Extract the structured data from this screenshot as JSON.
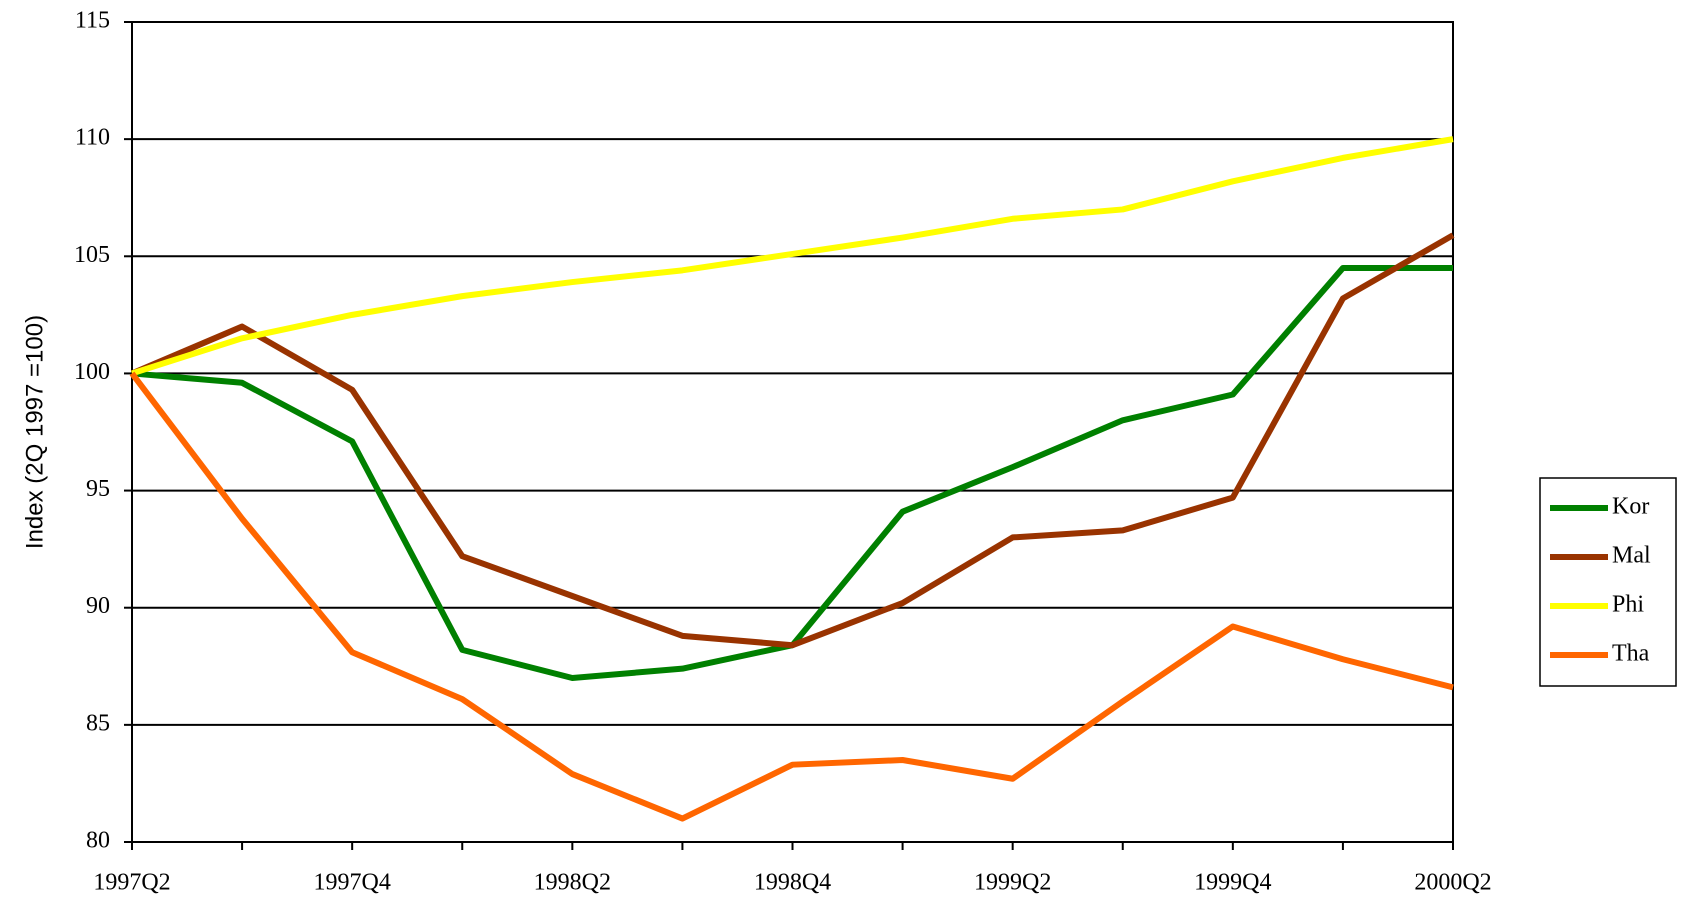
{
  "chart_data": {
    "type": "line",
    "y_label": "Index (2Q 1997 =100)",
    "categories": [
      "1997Q2",
      null,
      "1997Q4",
      null,
      "1998Q2",
      null,
      "1998Q4",
      null,
      "1999Q2",
      null,
      "1999Q4",
      null,
      "2000Q2"
    ],
    "series": [
      {
        "name": "Kor",
        "color": "#008000",
        "values": [
          100,
          99.6,
          97.1,
          88.2,
          87.0,
          87.4,
          88.4,
          94.1,
          96.0,
          98.0,
          99.1,
          104.5,
          104.5
        ]
      },
      {
        "name": "Mal",
        "color": "#993300",
        "values": [
          100,
          102.0,
          99.3,
          92.2,
          90.5,
          88.8,
          88.4,
          90.2,
          93.0,
          93.3,
          94.7,
          103.2,
          105.9
        ]
      },
      {
        "name": "Phi",
        "color": "#ffff00",
        "values": [
          100,
          101.5,
          102.5,
          103.3,
          103.9,
          104.4,
          105.1,
          105.8,
          106.6,
          107.0,
          108.2,
          109.2,
          110.0
        ]
      },
      {
        "name": "Tha",
        "color": "#ff6600",
        "values": [
          100,
          93.8,
          88.1,
          86.1,
          82.9,
          81.0,
          83.3,
          83.5,
          82.7,
          86.0,
          89.2,
          87.8,
          86.6
        ]
      }
    ],
    "ylim": [
      80,
      115
    ],
    "yticks": [
      80,
      85,
      90,
      95,
      100,
      105,
      110,
      115
    ],
    "grid": true,
    "legend": "right"
  }
}
